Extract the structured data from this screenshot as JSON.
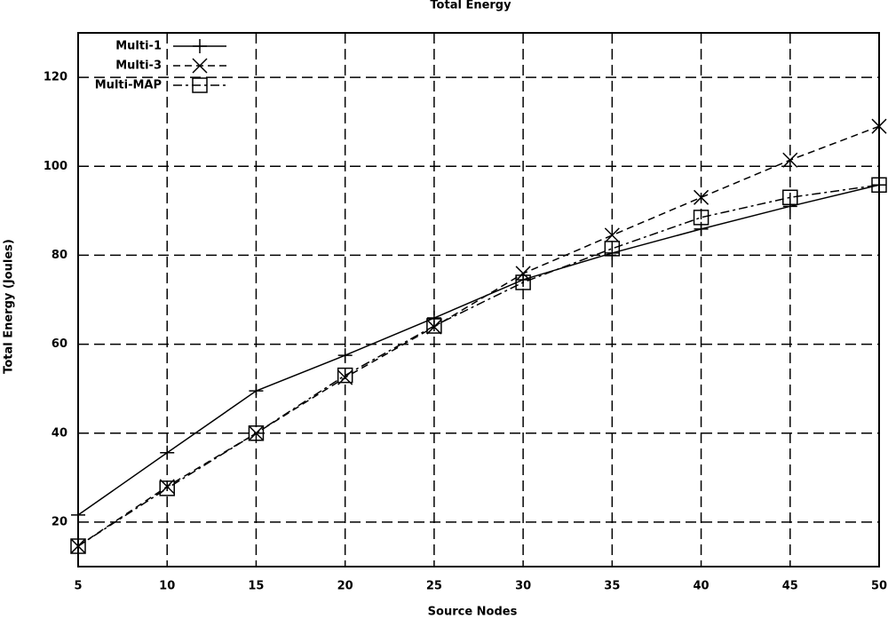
{
  "chart_data": {
    "type": "line",
    "title": "Total Energy",
    "x_label": "Source Nodes",
    "y_label": "Total Energy (Joules)",
    "x": [
      5,
      10,
      15,
      20,
      25,
      30,
      35,
      40,
      45,
      50
    ],
    "xlim": [
      5,
      50
    ],
    "xticks": [
      5,
      10,
      15,
      20,
      25,
      30,
      35,
      40,
      45,
      50
    ],
    "ylim": [
      10,
      130
    ],
    "yticks": [
      20,
      40,
      60,
      80,
      100,
      120
    ],
    "grid": true,
    "legend": "upper left",
    "series": [
      {
        "name": "Multi-1",
        "color": "#000000",
        "line_style": "solid",
        "marker": "plus",
        "values": [
          21.6,
          35.6,
          49.5,
          57.5,
          65.9,
          74.5,
          80.5,
          85.9,
          91,
          95.8
        ]
      },
      {
        "name": "Multi-3",
        "color": "#000000",
        "line_style": "dashed",
        "marker": "cross",
        "values": [
          14.6,
          28,
          40,
          52.5,
          63.9,
          75.9,
          84.5,
          93,
          101.4,
          109
        ]
      },
      {
        "name": "Multi-MAP",
        "color": "#000000",
        "line_style": "dashdot",
        "marker": "square",
        "values": [
          14.6,
          27.6,
          40,
          53,
          64.1,
          73.9,
          81.5,
          88.5,
          93,
          95.8
        ]
      }
    ]
  }
}
